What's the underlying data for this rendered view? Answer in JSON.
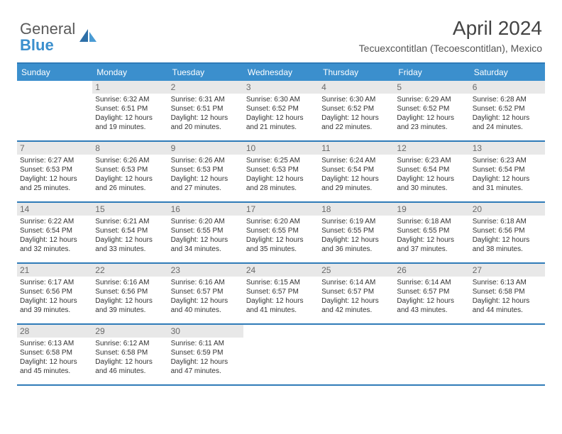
{
  "logo": {
    "text1": "General",
    "text2": "Blue"
  },
  "title": "April 2024",
  "location": "Tecuexcontitlan (Tecoescontitlan), Mexico",
  "colors": {
    "header_bg": "#3b8fcd",
    "divider": "#2f7bb8",
    "daynum_bg": "#e8e8e8",
    "logo_gray": "#5a5a5a",
    "logo_blue": "#3b8fcd"
  },
  "day_names": [
    "Sunday",
    "Monday",
    "Tuesday",
    "Wednesday",
    "Thursday",
    "Friday",
    "Saturday"
  ],
  "weeks": [
    [
      null,
      {
        "n": "1",
        "sr": "6:32 AM",
        "ss": "6:51 PM",
        "dl": "12 hours and 19 minutes."
      },
      {
        "n": "2",
        "sr": "6:31 AM",
        "ss": "6:51 PM",
        "dl": "12 hours and 20 minutes."
      },
      {
        "n": "3",
        "sr": "6:30 AM",
        "ss": "6:52 PM",
        "dl": "12 hours and 21 minutes."
      },
      {
        "n": "4",
        "sr": "6:30 AM",
        "ss": "6:52 PM",
        "dl": "12 hours and 22 minutes."
      },
      {
        "n": "5",
        "sr": "6:29 AM",
        "ss": "6:52 PM",
        "dl": "12 hours and 23 minutes."
      },
      {
        "n": "6",
        "sr": "6:28 AM",
        "ss": "6:52 PM",
        "dl": "12 hours and 24 minutes."
      }
    ],
    [
      {
        "n": "7",
        "sr": "6:27 AM",
        "ss": "6:53 PM",
        "dl": "12 hours and 25 minutes."
      },
      {
        "n": "8",
        "sr": "6:26 AM",
        "ss": "6:53 PM",
        "dl": "12 hours and 26 minutes."
      },
      {
        "n": "9",
        "sr": "6:26 AM",
        "ss": "6:53 PM",
        "dl": "12 hours and 27 minutes."
      },
      {
        "n": "10",
        "sr": "6:25 AM",
        "ss": "6:53 PM",
        "dl": "12 hours and 28 minutes."
      },
      {
        "n": "11",
        "sr": "6:24 AM",
        "ss": "6:54 PM",
        "dl": "12 hours and 29 minutes."
      },
      {
        "n": "12",
        "sr": "6:23 AM",
        "ss": "6:54 PM",
        "dl": "12 hours and 30 minutes."
      },
      {
        "n": "13",
        "sr": "6:23 AM",
        "ss": "6:54 PM",
        "dl": "12 hours and 31 minutes."
      }
    ],
    [
      {
        "n": "14",
        "sr": "6:22 AM",
        "ss": "6:54 PM",
        "dl": "12 hours and 32 minutes."
      },
      {
        "n": "15",
        "sr": "6:21 AM",
        "ss": "6:54 PM",
        "dl": "12 hours and 33 minutes."
      },
      {
        "n": "16",
        "sr": "6:20 AM",
        "ss": "6:55 PM",
        "dl": "12 hours and 34 minutes."
      },
      {
        "n": "17",
        "sr": "6:20 AM",
        "ss": "6:55 PM",
        "dl": "12 hours and 35 minutes."
      },
      {
        "n": "18",
        "sr": "6:19 AM",
        "ss": "6:55 PM",
        "dl": "12 hours and 36 minutes."
      },
      {
        "n": "19",
        "sr": "6:18 AM",
        "ss": "6:55 PM",
        "dl": "12 hours and 37 minutes."
      },
      {
        "n": "20",
        "sr": "6:18 AM",
        "ss": "6:56 PM",
        "dl": "12 hours and 38 minutes."
      }
    ],
    [
      {
        "n": "21",
        "sr": "6:17 AM",
        "ss": "6:56 PM",
        "dl": "12 hours and 39 minutes."
      },
      {
        "n": "22",
        "sr": "6:16 AM",
        "ss": "6:56 PM",
        "dl": "12 hours and 39 minutes."
      },
      {
        "n": "23",
        "sr": "6:16 AM",
        "ss": "6:57 PM",
        "dl": "12 hours and 40 minutes."
      },
      {
        "n": "24",
        "sr": "6:15 AM",
        "ss": "6:57 PM",
        "dl": "12 hours and 41 minutes."
      },
      {
        "n": "25",
        "sr": "6:14 AM",
        "ss": "6:57 PM",
        "dl": "12 hours and 42 minutes."
      },
      {
        "n": "26",
        "sr": "6:14 AM",
        "ss": "6:57 PM",
        "dl": "12 hours and 43 minutes."
      },
      {
        "n": "27",
        "sr": "6:13 AM",
        "ss": "6:58 PM",
        "dl": "12 hours and 44 minutes."
      }
    ],
    [
      {
        "n": "28",
        "sr": "6:13 AM",
        "ss": "6:58 PM",
        "dl": "12 hours and 45 minutes."
      },
      {
        "n": "29",
        "sr": "6:12 AM",
        "ss": "6:58 PM",
        "dl": "12 hours and 46 minutes."
      },
      {
        "n": "30",
        "sr": "6:11 AM",
        "ss": "6:59 PM",
        "dl": "12 hours and 47 minutes."
      },
      null,
      null,
      null,
      null
    ]
  ],
  "labels": {
    "sunrise": "Sunrise:",
    "sunset": "Sunset:",
    "daylight": "Daylight:"
  }
}
